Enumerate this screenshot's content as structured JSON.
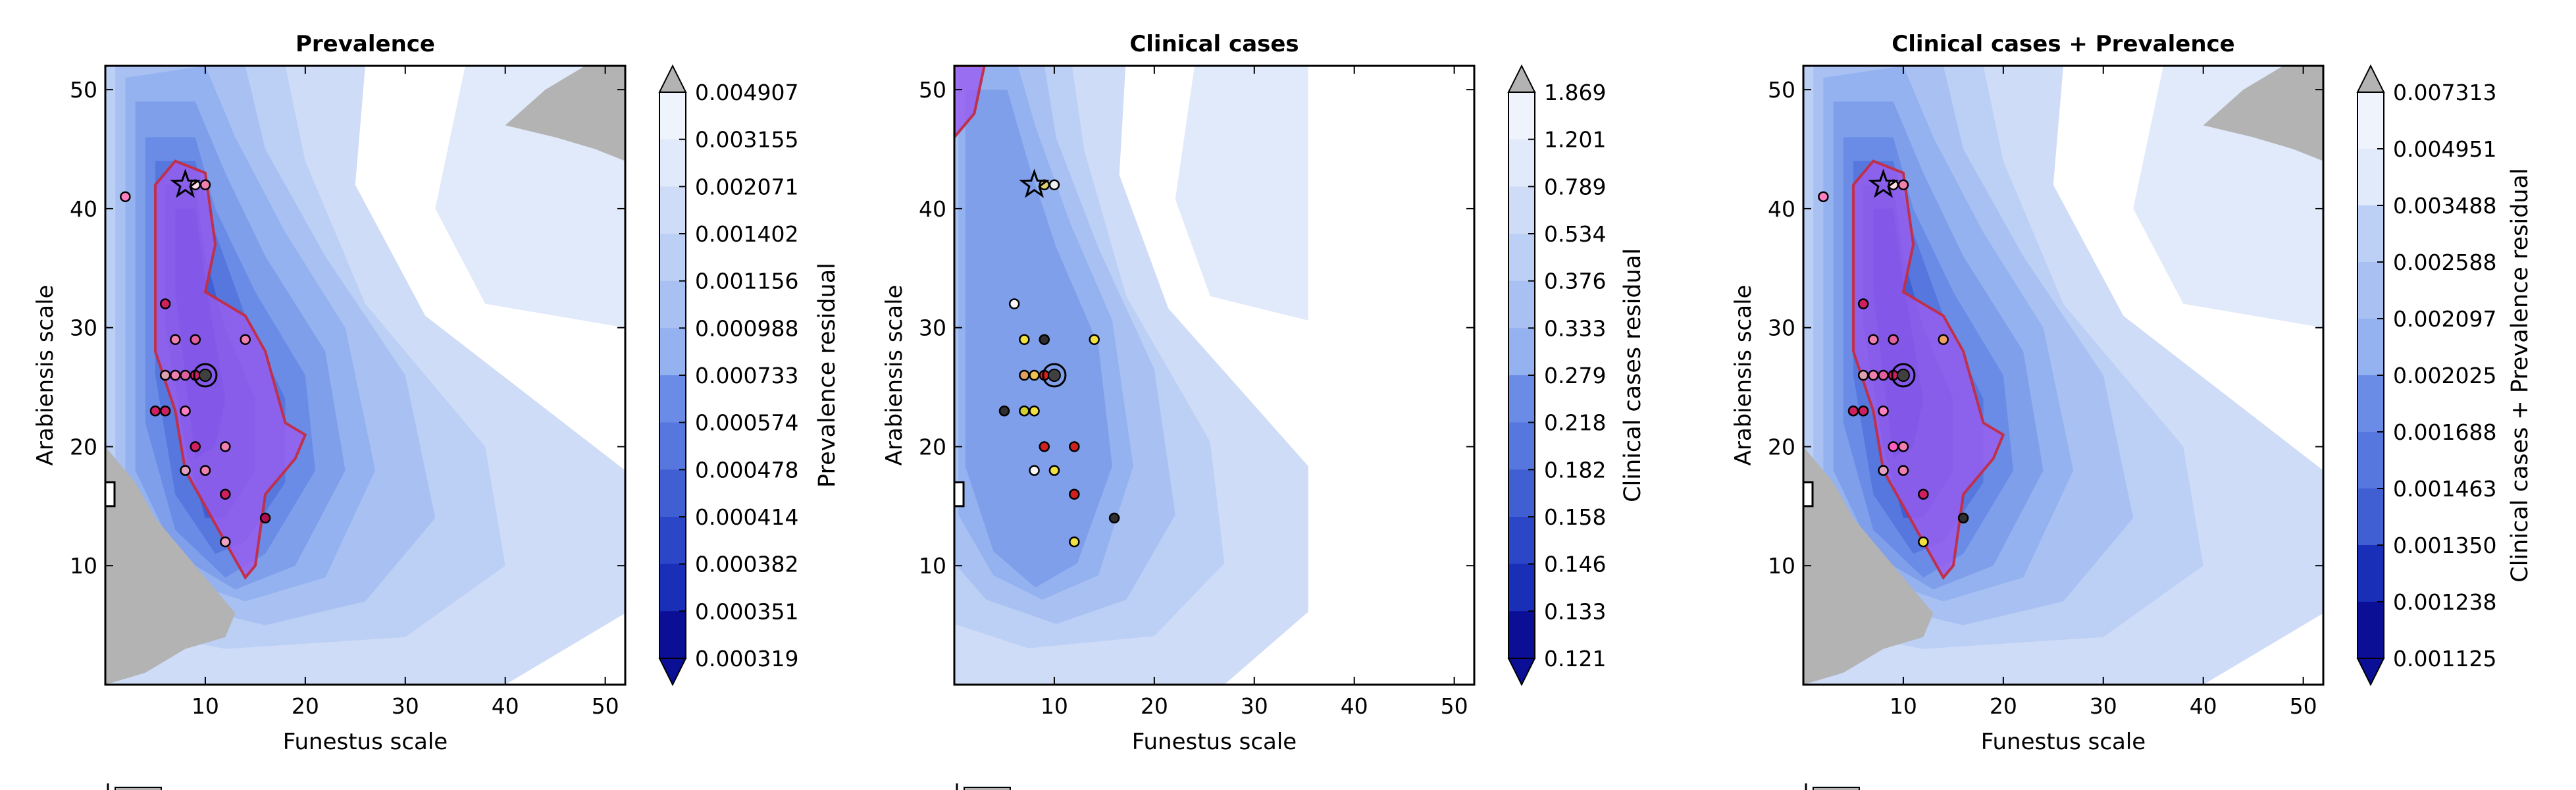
{
  "chart_data": [
    {
      "type": "contour",
      "title": "Prevalence",
      "xlabel": "Funestus scale",
      "ylabel": "Arabiensis scale",
      "xlim": [
        0,
        52
      ],
      "ylim": [
        0,
        52
      ],
      "xticks": [
        10,
        20,
        30,
        40,
        50
      ],
      "yticks": [
        10,
        20,
        30,
        40,
        50
      ],
      "colorbar_label": "Prevalence residual",
      "colorbar_levels": [
        "0.004907",
        "0.003155",
        "0.002071",
        "0.001402",
        "0.001156",
        "0.000988",
        "0.000733",
        "0.000574",
        "0.000478",
        "0.000414",
        "0.000382",
        "0.000351",
        "0.000319"
      ],
      "optimum": {
        "x": 8,
        "y": 42
      },
      "baseline": {
        "x": 10,
        "y": 26
      },
      "points": [
        {
          "x": 9,
          "y": 42
        },
        {
          "x": 10,
          "y": 42
        },
        {
          "x": 2,
          "y": 41
        },
        {
          "x": 6,
          "y": 32
        },
        {
          "x": 7,
          "y": 29
        },
        {
          "x": 9,
          "y": 29
        },
        {
          "x": 14,
          "y": 29
        },
        {
          "x": 6,
          "y": 26
        },
        {
          "x": 7,
          "y": 26
        },
        {
          "x": 8,
          "y": 26
        },
        {
          "x": 9,
          "y": 26
        },
        {
          "x": 5,
          "y": 23
        },
        {
          "x": 6,
          "y": 23
        },
        {
          "x": 8,
          "y": 23
        },
        {
          "x": 9,
          "y": 20
        },
        {
          "x": 12,
          "y": 20
        },
        {
          "x": 8,
          "y": 18
        },
        {
          "x": 10,
          "y": 18
        },
        {
          "x": 12,
          "y": 16
        },
        {
          "x": 16,
          "y": 14
        },
        {
          "x": 12,
          "y": 12
        }
      ]
    },
    {
      "type": "contour",
      "title": "Clinical cases",
      "xlabel": "Funestus scale",
      "ylabel": "Arabiensis scale",
      "xlim": [
        0,
        52
      ],
      "ylim": [
        0,
        52
      ],
      "xticks": [
        10,
        20,
        30,
        40,
        50
      ],
      "yticks": [
        10,
        20,
        30,
        40,
        50
      ],
      "colorbar_label": "Clinical cases residual",
      "colorbar_levels": [
        "1.869",
        "1.201",
        "0.789",
        "0.534",
        "0.376",
        "0.333",
        "0.279",
        "0.218",
        "0.182",
        "0.158",
        "0.146",
        "0.133",
        "0.121"
      ],
      "optimum": {
        "x": 8,
        "y": 42
      },
      "baseline": {
        "x": 10,
        "y": 26
      },
      "points": [
        {
          "x": 9,
          "y": 42
        },
        {
          "x": 10,
          "y": 42
        },
        {
          "x": 6,
          "y": 32
        },
        {
          "x": 7,
          "y": 29
        },
        {
          "x": 9,
          "y": 29
        },
        {
          "x": 14,
          "y": 29
        },
        {
          "x": 7,
          "y": 26
        },
        {
          "x": 8,
          "y": 26
        },
        {
          "x": 9,
          "y": 26
        },
        {
          "x": 5,
          "y": 23
        },
        {
          "x": 7,
          "y": 23
        },
        {
          "x": 8,
          "y": 23
        },
        {
          "x": 9,
          "y": 20
        },
        {
          "x": 12,
          "y": 20
        },
        {
          "x": 8,
          "y": 18
        },
        {
          "x": 10,
          "y": 18
        },
        {
          "x": 12,
          "y": 16
        },
        {
          "x": 16,
          "y": 14
        },
        {
          "x": 12,
          "y": 12
        }
      ]
    },
    {
      "type": "contour",
      "title": "Clinical cases + Prevalence",
      "xlabel": "Funestus scale",
      "ylabel": "Arabiensis scale",
      "xlim": [
        0,
        52
      ],
      "ylim": [
        0,
        52
      ],
      "xticks": [
        10,
        20,
        30,
        40,
        50
      ],
      "yticks": [
        10,
        20,
        30,
        40,
        50
      ],
      "colorbar_label": "Clinical cases + Prevalence residual",
      "colorbar_levels": [
        "0.007313",
        "0.004951",
        "0.003488",
        "0.002588",
        "0.002097",
        "0.002025",
        "0.001688",
        "0.001463",
        "0.001350",
        "0.001238",
        "0.001125"
      ],
      "optimum": {
        "x": 8,
        "y": 42
      },
      "baseline": {
        "x": 10,
        "y": 26
      },
      "points": [
        {
          "x": 9,
          "y": 42
        },
        {
          "x": 10,
          "y": 42
        },
        {
          "x": 2,
          "y": 41
        },
        {
          "x": 6,
          "y": 32
        },
        {
          "x": 7,
          "y": 29
        },
        {
          "x": 9,
          "y": 29
        },
        {
          "x": 14,
          "y": 29
        },
        {
          "x": 6,
          "y": 26
        },
        {
          "x": 7,
          "y": 26
        },
        {
          "x": 8,
          "y": 26
        },
        {
          "x": 9,
          "y": 26
        },
        {
          "x": 5,
          "y": 23
        },
        {
          "x": 6,
          "y": 23
        },
        {
          "x": 8,
          "y": 23
        },
        {
          "x": 9,
          "y": 20
        },
        {
          "x": 10,
          "y": 20
        },
        {
          "x": 8,
          "y": 18
        },
        {
          "x": 10,
          "y": 18
        },
        {
          "x": 12,
          "y": 16
        },
        {
          "x": 16,
          "y": 14
        },
        {
          "x": 12,
          "y": 12
        }
      ]
    }
  ],
  "colors": {
    "contour_shades": [
      "#eef3fc",
      "#e1eafa",
      "#cfdcf7",
      "#bccff5",
      "#a9c1f2",
      "#94b2ef",
      "#7f9feb",
      "#6a8ce6",
      "#5577de",
      "#3f5fd3",
      "#2b47c7",
      "#1a2fb8",
      "#0a0f96"
    ],
    "region": "#9a5cf0",
    "region_edge": "#c0304a",
    "land": "#b3b3b3"
  },
  "marker_colors": {
    "prevalence": [
      "#ffe0e8",
      "#f080b0",
      "#ff80c0",
      "#d02060",
      "#f080b0",
      "#e060a0",
      "#f080b0",
      "#e0a0b0",
      "#f080b0",
      "#e060a0",
      "#d02060",
      "#d02060",
      "#d02060",
      "#ff80c0",
      "#d02060",
      "#f080b0",
      "#e0a0c0",
      "#f080b0",
      "#d02060",
      "#b01050",
      "#f0a0c0"
    ],
    "clinical": [
      "#e0d070",
      "#f0f0f0",
      "#f8f8f8",
      "#f0e040",
      "#303030",
      "#f0e040",
      "#e0a060",
      "#f0c050",
      "#e02020",
      "#303030",
      "#d0d030",
      "#f0e040",
      "#d02020",
      "#d02020",
      "#f8f8f8",
      "#f0e040",
      "#d02020",
      "#303030",
      "#f0e040"
    ],
    "combined": [
      "#ffe0e8",
      "#f080b0",
      "#ff80c0",
      "#d02060",
      "#f080b0",
      "#e060a0",
      "#f0a060",
      "#e0a0b0",
      "#f080b0",
      "#e060a0",
      "#d02060",
      "#d02060",
      "#d02060",
      "#ff80c0",
      "#ff60c0",
      "#f080b0",
      "#e0a0c0",
      "#f080b0",
      "#d02060",
      "#303030",
      "#f0e040"
    ]
  }
}
